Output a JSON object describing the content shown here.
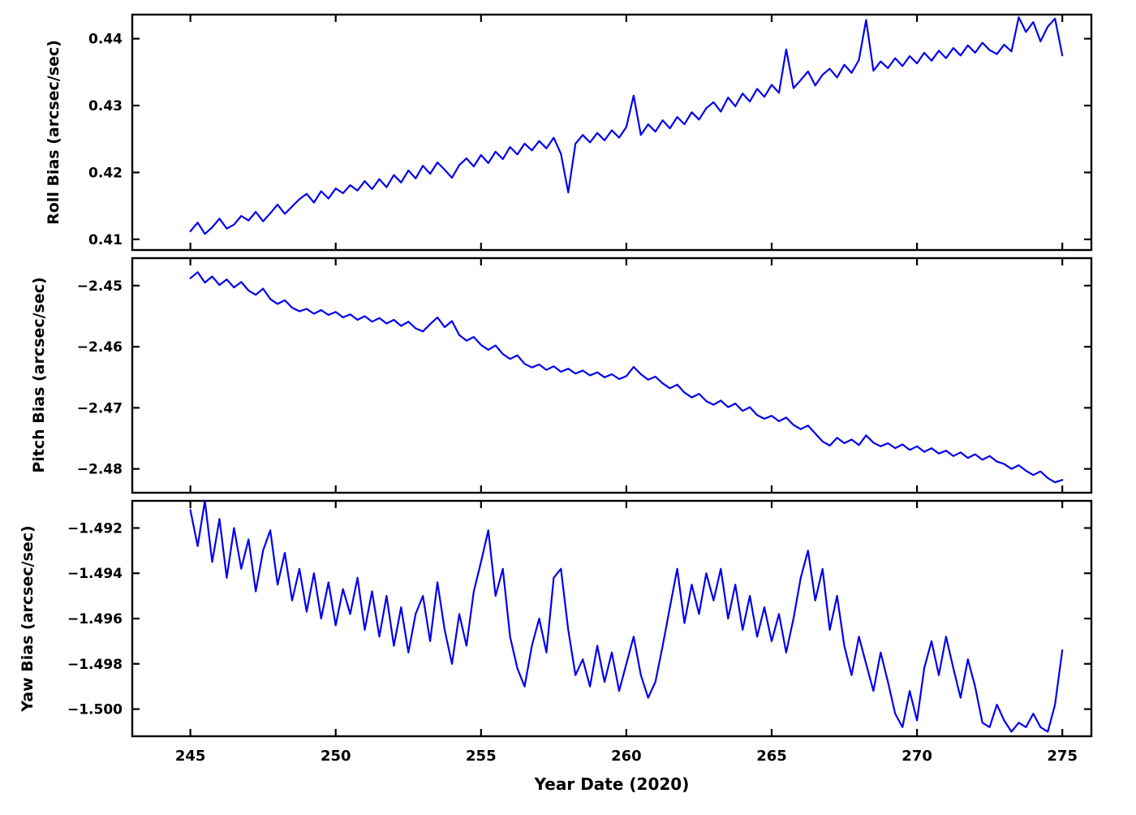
{
  "figure": {
    "xlabel": "Year Date (2020)",
    "background": "#ffffff",
    "line_color": "#0000ee",
    "axis_color": "#000000"
  },
  "chart_data": [
    {
      "type": "line",
      "name": "roll",
      "series_label": "Roll Bias",
      "ylabel": "Roll Bias (arcsec/sec)",
      "xlabel": "Year Date (2020)",
      "x_start": 245,
      "x_step": 0.25,
      "xlim": [
        243,
        276
      ],
      "ylim": [
        0.4084,
        0.4436
      ],
      "xticks": [
        245,
        250,
        255,
        260,
        265,
        270,
        275
      ],
      "xtick_labels": [
        "245",
        "250",
        "255",
        "260",
        "265",
        "270",
        "275"
      ],
      "show_xtick_labels": false,
      "yticks": [
        0.41,
        0.42,
        0.43,
        0.44
      ],
      "ytick_labels": [
        "0.41",
        "0.42",
        "0.43",
        "0.44"
      ],
      "values": [
        0.4112,
        0.4125,
        0.4108,
        0.4118,
        0.4131,
        0.4116,
        0.4122,
        0.4135,
        0.4128,
        0.4141,
        0.4127,
        0.4139,
        0.4152,
        0.4138,
        0.4149,
        0.416,
        0.4168,
        0.4155,
        0.4172,
        0.4161,
        0.4176,
        0.4169,
        0.4181,
        0.4173,
        0.4187,
        0.4175,
        0.419,
        0.4178,
        0.4196,
        0.4185,
        0.4203,
        0.4191,
        0.421,
        0.4198,
        0.4215,
        0.4204,
        0.4192,
        0.4211,
        0.4221,
        0.4209,
        0.4226,
        0.4214,
        0.4231,
        0.422,
        0.4238,
        0.4227,
        0.4243,
        0.4233,
        0.4247,
        0.4236,
        0.4252,
        0.4228,
        0.417,
        0.4243,
        0.4256,
        0.4245,
        0.4259,
        0.4248,
        0.4263,
        0.4252,
        0.4268,
        0.4315,
        0.4256,
        0.4272,
        0.4261,
        0.4278,
        0.4266,
        0.4283,
        0.4272,
        0.429,
        0.4279,
        0.4296,
        0.4305,
        0.4291,
        0.4312,
        0.4299,
        0.4318,
        0.4306,
        0.4325,
        0.4313,
        0.4331,
        0.4319,
        0.4384,
        0.4326,
        0.4338,
        0.4351,
        0.433,
        0.4346,
        0.4355,
        0.4342,
        0.4361,
        0.4349,
        0.4368,
        0.4428,
        0.4352,
        0.4366,
        0.4356,
        0.4371,
        0.4359,
        0.4374,
        0.4363,
        0.4379,
        0.4367,
        0.4382,
        0.4371,
        0.4386,
        0.4375,
        0.439,
        0.4379,
        0.4394,
        0.4383,
        0.4377,
        0.4391,
        0.4381,
        0.4432,
        0.441,
        0.4425,
        0.4396,
        0.4418,
        0.443,
        0.4375
      ]
    },
    {
      "type": "line",
      "name": "pitch",
      "series_label": "Pitch Bias",
      "ylabel": "Pitch Bias (arcsec/sec)",
      "xlabel": "Year Date (2020)",
      "x_start": 245,
      "x_step": 0.25,
      "xlim": [
        243,
        276
      ],
      "ylim": [
        -2.4839,
        -2.4455
      ],
      "xticks": [
        245,
        250,
        255,
        260,
        265,
        270,
        275
      ],
      "xtick_labels": [
        "245",
        "250",
        "255",
        "260",
        "265",
        "270",
        "275"
      ],
      "show_xtick_labels": false,
      "yticks": [
        -2.45,
        -2.46,
        -2.47,
        -2.48
      ],
      "ytick_labels": [
        "−2.45",
        "−2.46",
        "−2.47",
        "−2.48"
      ],
      "values": [
        -2.4488,
        -2.4478,
        -2.4495,
        -2.4485,
        -2.4499,
        -2.449,
        -2.4503,
        -2.4494,
        -2.4508,
        -2.4515,
        -2.4505,
        -2.4522,
        -2.453,
        -2.4524,
        -2.4536,
        -2.4542,
        -2.4538,
        -2.4546,
        -2.454,
        -2.4548,
        -2.4543,
        -2.4552,
        -2.4547,
        -2.4556,
        -2.455,
        -2.4559,
        -2.4553,
        -2.4562,
        -2.4556,
        -2.4566,
        -2.4559,
        -2.457,
        -2.4575,
        -2.4563,
        -2.4552,
        -2.4568,
        -2.4558,
        -2.4581,
        -2.459,
        -2.4584,
        -2.4597,
        -2.4605,
        -2.4598,
        -2.4612,
        -2.462,
        -2.4614,
        -2.4628,
        -2.4634,
        -2.4629,
        -2.4638,
        -2.4632,
        -2.4641,
        -2.4636,
        -2.4644,
        -2.4639,
        -2.4647,
        -2.4642,
        -2.465,
        -2.4645,
        -2.4653,
        -2.4648,
        -2.4633,
        -2.4645,
        -2.4654,
        -2.4649,
        -2.466,
        -2.4668,
        -2.4662,
        -2.4675,
        -2.4683,
        -2.4677,
        -2.4689,
        -2.4695,
        -2.4688,
        -2.4699,
        -2.4693,
        -2.4705,
        -2.4699,
        -2.4712,
        -2.4718,
        -2.4713,
        -2.4722,
        -2.4716,
        -2.4728,
        -2.4735,
        -2.4729,
        -2.4742,
        -2.4755,
        -2.4762,
        -2.4749,
        -2.4758,
        -2.4752,
        -2.4761,
        -2.4745,
        -2.4757,
        -2.4763,
        -2.4758,
        -2.4766,
        -2.476,
        -2.4769,
        -2.4763,
        -2.4772,
        -2.4766,
        -2.4775,
        -2.477,
        -2.4779,
        -2.4773,
        -2.4782,
        -2.4776,
        -2.4785,
        -2.4779,
        -2.4788,
        -2.4792,
        -2.48,
        -2.4794,
        -2.4803,
        -2.481,
        -2.4804,
        -2.4815,
        -2.4822,
        -2.4818
      ]
    },
    {
      "type": "line",
      "name": "yaw",
      "series_label": "Yaw Bias",
      "ylabel": "Yaw Bias (arcsec/sec)",
      "xlabel": "Year Date (2020)",
      "x_start": 245,
      "x_step": 0.25,
      "xlim": [
        243,
        276
      ],
      "ylim": [
        -1.5012,
        -1.4908
      ],
      "xticks": [
        245,
        250,
        255,
        260,
        265,
        270,
        275
      ],
      "xtick_labels": [
        "245",
        "250",
        "255",
        "260",
        "265",
        "270",
        "275"
      ],
      "show_xtick_labels": true,
      "yticks": [
        -1.492,
        -1.494,
        -1.496,
        -1.498,
        -1.5
      ],
      "ytick_labels": [
        "−1.492",
        "−1.494",
        "−1.496",
        "−1.498",
        "−1.500"
      ],
      "values": [
        -1.4912,
        -1.4928,
        -1.4908,
        -1.4935,
        -1.4916,
        -1.4942,
        -1.492,
        -1.4938,
        -1.4925,
        -1.4948,
        -1.493,
        -1.4921,
        -1.4945,
        -1.4931,
        -1.4952,
        -1.4938,
        -1.4957,
        -1.494,
        -1.496,
        -1.4944,
        -1.4963,
        -1.4947,
        -1.4958,
        -1.4942,
        -1.4965,
        -1.4948,
        -1.4968,
        -1.495,
        -1.4972,
        -1.4955,
        -1.4975,
        -1.4958,
        -1.495,
        -1.497,
        -1.4944,
        -1.4965,
        -1.498,
        -1.4958,
        -1.4972,
        -1.4948,
        -1.4935,
        -1.4921,
        -1.495,
        -1.4938,
        -1.4968,
        -1.4982,
        -1.499,
        -1.4972,
        -1.496,
        -1.4975,
        -1.4942,
        -1.4938,
        -1.4965,
        -1.4985,
        -1.4978,
        -1.499,
        -1.4972,
        -1.4988,
        -1.4975,
        -1.4992,
        -1.498,
        -1.4968,
        -1.4985,
        -1.4995,
        -1.4988,
        -1.4972,
        -1.4955,
        -1.4938,
        -1.4962,
        -1.4945,
        -1.4958,
        -1.494,
        -1.4952,
        -1.4938,
        -1.496,
        -1.4945,
        -1.4965,
        -1.495,
        -1.4968,
        -1.4955,
        -1.497,
        -1.4958,
        -1.4975,
        -1.496,
        -1.4942,
        -1.493,
        -1.4952,
        -1.4938,
        -1.4965,
        -1.495,
        -1.4972,
        -1.4985,
        -1.4968,
        -1.498,
        -1.4992,
        -1.4975,
        -1.4988,
        -1.5002,
        -1.5008,
        -1.4992,
        -1.5005,
        -1.4982,
        -1.497,
        -1.4985,
        -1.4968,
        -1.4982,
        -1.4995,
        -1.4978,
        -1.499,
        -1.5006,
        -1.5008,
        -1.4998,
        -1.5005,
        -1.501,
        -1.5006,
        -1.5008,
        -1.5002,
        -1.5008,
        -1.501,
        -1.4998,
        -1.4974
      ]
    }
  ]
}
